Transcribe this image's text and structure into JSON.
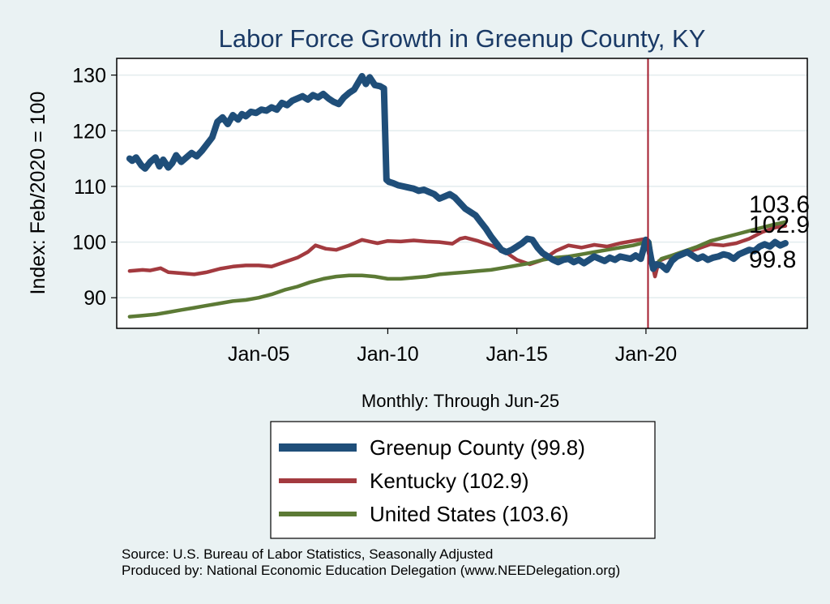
{
  "chart_data": {
    "type": "line",
    "title": "Labor Force Growth in Greenup  County, KY",
    "ylabel": "Index: Feb/2020 = 100",
    "xlabel": "Monthly: Through Jun-25",
    "ylim": [
      84.5,
      133
    ],
    "xlim": [
      1999.5,
      2026.25
    ],
    "yticks": [
      90,
      100,
      110,
      120,
      130
    ],
    "xticks": [
      {
        "value": 2005,
        "label": "Jan-05"
      },
      {
        "value": 2010,
        "label": "Jan-10"
      },
      {
        "value": 2015,
        "label": "Jan-15"
      },
      {
        "value": 2020,
        "label": "Jan-20"
      }
    ],
    "reference_line": 2020.08,
    "end_labels": [
      "103.6",
      "102.9",
      "99.8"
    ],
    "series": [
      {
        "name": "Greenup  County",
        "legend": "Greenup  County (99.8)",
        "color": "#1f4e79",
        "x": [
          2000.0,
          2000.1,
          2000.25,
          2000.45,
          2000.6,
          2000.8,
          2001.0,
          2001.15,
          2001.3,
          2001.5,
          2001.65,
          2001.8,
          2002.0,
          2002.2,
          2002.4,
          2002.6,
          2002.8,
          2003.0,
          2003.2,
          2003.4,
          2003.6,
          2003.8,
          2004.0,
          2004.2,
          2004.35,
          2004.5,
          2004.7,
          2004.9,
          2005.1,
          2005.3,
          2005.5,
          2005.7,
          2005.9,
          2006.1,
          2006.3,
          2006.5,
          2006.7,
          2006.9,
          2007.1,
          2007.3,
          2007.5,
          2007.7,
          2007.9,
          2008.1,
          2008.3,
          2008.5,
          2008.7,
          2008.85,
          2009.0,
          2009.15,
          2009.3,
          2009.5,
          2009.7,
          2009.85,
          2009.95,
          2010.05,
          2010.2,
          2010.4,
          2010.6,
          2010.8,
          2011.0,
          2011.2,
          2011.4,
          2011.6,
          2011.8,
          2012.0,
          2012.2,
          2012.4,
          2012.6,
          2012.8,
          2013.0,
          2013.2,
          2013.4,
          2013.6,
          2013.8,
          2014.0,
          2014.2,
          2014.4,
          2014.6,
          2014.8,
          2015.0,
          2015.2,
          2015.4,
          2015.6,
          2015.8,
          2016.0,
          2016.2,
          2016.4,
          2016.6,
          2016.8,
          2017.0,
          2017.2,
          2017.4,
          2017.6,
          2017.8,
          2018.0,
          2018.2,
          2018.4,
          2018.6,
          2018.8,
          2019.0,
          2019.2,
          2019.4,
          2019.6,
          2019.8,
          2020.0,
          2020.08,
          2020.2,
          2020.28,
          2020.4,
          2020.6,
          2020.8,
          2021.0,
          2021.2,
          2021.4,
          2021.6,
          2021.8,
          2022.0,
          2022.2,
          2022.4,
          2022.6,
          2022.8,
          2023.0,
          2023.2,
          2023.4,
          2023.6,
          2023.8,
          2024.0,
          2024.2,
          2024.4,
          2024.6,
          2024.8,
          2025.0,
          2025.2,
          2025.4
        ],
        "values": [
          115.0,
          114.6,
          115.2,
          113.8,
          113.2,
          114.4,
          115.2,
          113.6,
          114.8,
          113.4,
          114.2,
          115.6,
          114.4,
          115.2,
          116.0,
          115.4,
          116.4,
          117.6,
          118.8,
          121.6,
          122.4,
          121.2,
          122.8,
          122.0,
          123.0,
          122.6,
          123.4,
          123.2,
          123.8,
          123.6,
          124.2,
          123.8,
          125.0,
          124.6,
          125.4,
          125.8,
          126.2,
          125.6,
          126.4,
          126.0,
          126.6,
          125.8,
          125.2,
          124.8,
          126.0,
          126.8,
          127.4,
          128.6,
          129.8,
          128.4,
          129.6,
          128.2,
          128.0,
          127.6,
          111.2,
          110.8,
          110.6,
          110.2,
          110.0,
          109.8,
          109.6,
          109.2,
          109.4,
          109.0,
          108.6,
          107.8,
          108.2,
          108.6,
          108.0,
          107.0,
          106.0,
          105.4,
          104.8,
          103.6,
          102.4,
          101.0,
          99.8,
          98.6,
          98.2,
          98.6,
          99.2,
          99.8,
          100.6,
          100.4,
          99.0,
          98.0,
          97.4,
          96.8,
          96.4,
          96.8,
          97.0,
          96.4,
          96.8,
          96.2,
          96.8,
          97.4,
          97.0,
          96.6,
          97.2,
          96.8,
          97.4,
          97.2,
          97.0,
          97.6,
          97.0,
          100.4,
          100.0,
          97.0,
          95.2,
          96.0,
          95.8,
          95.0,
          96.6,
          97.4,
          97.8,
          98.2,
          97.6,
          97.0,
          97.4,
          96.8,
          97.2,
          97.4,
          97.8,
          97.6,
          97.0,
          97.8,
          98.2,
          98.6,
          98.4,
          99.2,
          99.6,
          99.2,
          100.0,
          99.4,
          99.8
        ]
      },
      {
        "name": "Kentucky",
        "legend": "Kentucky (102.9)",
        "color": "#a33a3f",
        "x": [
          2000.0,
          2000.5,
          2000.8,
          2001.2,
          2001.5,
          2002.0,
          2002.5,
          2003.0,
          2003.5,
          2004.0,
          2004.5,
          2005.0,
          2005.5,
          2006.0,
          2006.5,
          2006.9,
          2007.2,
          2007.6,
          2008.0,
          2008.5,
          2009.0,
          2009.3,
          2009.6,
          2010.0,
          2010.5,
          2011.0,
          2011.5,
          2012.0,
          2012.5,
          2012.8,
          2013.0,
          2013.5,
          2014.0,
          2014.5,
          2015.0,
          2015.5,
          2016.0,
          2016.5,
          2017.0,
          2017.5,
          2018.0,
          2018.5,
          2019.0,
          2019.5,
          2020.0,
          2020.15,
          2020.28,
          2020.35,
          2020.5,
          2020.8,
          2021.2,
          2021.6,
          2022.0,
          2022.5,
          2023.0,
          2023.5,
          2024.0,
          2024.5,
          2025.0,
          2025.4
        ],
        "values": [
          94.8,
          95.0,
          94.9,
          95.3,
          94.6,
          94.4,
          94.2,
          94.6,
          95.2,
          95.6,
          95.8,
          95.8,
          95.6,
          96.4,
          97.2,
          98.2,
          99.4,
          98.8,
          98.6,
          99.4,
          100.4,
          100.1,
          99.8,
          100.2,
          100.1,
          100.3,
          100.1,
          100.0,
          99.7,
          100.6,
          100.8,
          100.2,
          99.4,
          98.4,
          96.8,
          96.0,
          96.8,
          98.4,
          99.4,
          99.0,
          99.5,
          99.2,
          99.8,
          100.2,
          100.6,
          99.4,
          95.2,
          93.8,
          96.6,
          97.2,
          97.6,
          98.2,
          98.8,
          99.6,
          99.4,
          99.8,
          100.6,
          101.8,
          102.6,
          102.9
        ]
      },
      {
        "name": "United States",
        "legend": "United States (103.6)",
        "color": "#5c7a35",
        "x": [
          2000.0,
          2000.5,
          2001.0,
          2001.5,
          2002.0,
          2002.5,
          2003.0,
          2003.5,
          2004.0,
          2004.5,
          2005.0,
          2005.5,
          2006.0,
          2006.5,
          2007.0,
          2007.5,
          2008.0,
          2008.5,
          2009.0,
          2009.5,
          2010.0,
          2010.5,
          2011.0,
          2011.5,
          2012.0,
          2012.5,
          2013.0,
          2013.5,
          2014.0,
          2014.5,
          2015.0,
          2015.5,
          2016.0,
          2016.5,
          2017.0,
          2017.5,
          2018.0,
          2018.5,
          2019.0,
          2019.5,
          2020.0,
          2020.15,
          2020.28,
          2020.4,
          2020.6,
          2021.0,
          2021.5,
          2022.0,
          2022.5,
          2023.0,
          2023.5,
          2024.0,
          2024.5,
          2025.0,
          2025.4
        ],
        "values": [
          86.6,
          86.8,
          87.0,
          87.4,
          87.8,
          88.2,
          88.6,
          89.0,
          89.4,
          89.6,
          90.0,
          90.6,
          91.4,
          92.0,
          92.8,
          93.4,
          93.8,
          94.0,
          94.0,
          93.8,
          93.4,
          93.4,
          93.6,
          93.8,
          94.2,
          94.4,
          94.6,
          94.8,
          95.0,
          95.4,
          95.8,
          96.2,
          96.8,
          97.2,
          97.4,
          97.8,
          98.2,
          98.6,
          99.0,
          99.4,
          100.0,
          100.0,
          95.4,
          96.0,
          97.0,
          97.6,
          98.4,
          99.2,
          100.2,
          100.8,
          101.4,
          102.0,
          102.6,
          103.2,
          103.6
        ]
      }
    ]
  },
  "source_line": "Source: U.S. Bureau of Labor Statistics, Seasonally Adjusted",
  "produced_line": "Produced by: National Economic Education Delegation (www.NEEDelegation.org)"
}
